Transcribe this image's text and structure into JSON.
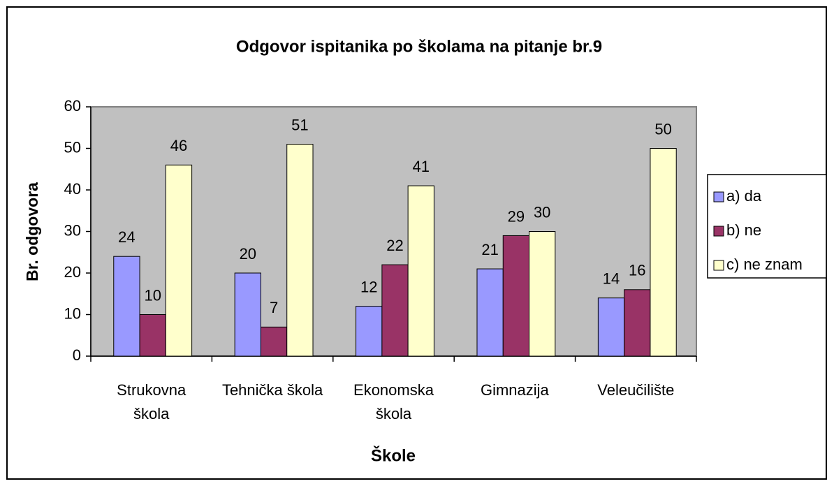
{
  "chart_data": {
    "type": "bar",
    "title": "Odgovor ispitanika po školama na pitanje br.9",
    "xlabel": "Škole",
    "ylabel": "Br. odgovora",
    "categories": [
      "Strukovna škola",
      "Tehnička škola",
      "Ekonomska škola",
      "Gimnazija",
      "Veleučilište"
    ],
    "series": [
      {
        "name": "a) da",
        "color": "#9999ff",
        "values": [
          24,
          20,
          12,
          21,
          14
        ]
      },
      {
        "name": "b) ne",
        "color": "#993366",
        "values": [
          10,
          7,
          22,
          29,
          16
        ]
      },
      {
        "name": "c) ne znam",
        "color": "#ffffcc",
        "values": [
          46,
          51,
          41,
          30,
          50
        ]
      }
    ],
    "ylim": [
      0,
      60
    ],
    "yticks": [
      0,
      10,
      20,
      30,
      40,
      50,
      60
    ],
    "grid": false,
    "legend": "right",
    "plot_background": "#c0c0c0"
  }
}
